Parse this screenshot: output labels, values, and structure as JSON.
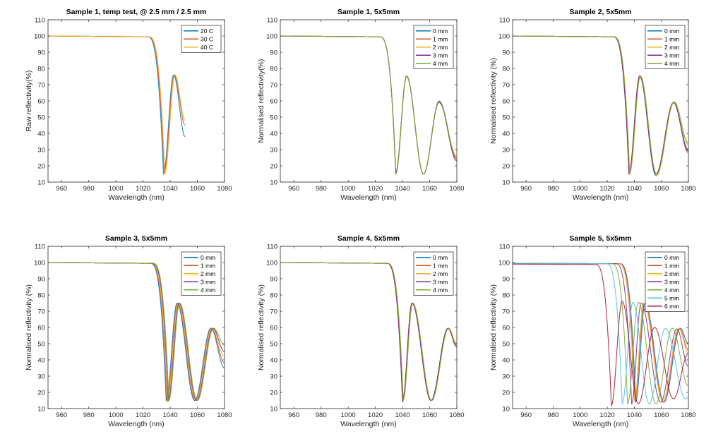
{
  "figure": {
    "xticks": [
      "960",
      "980",
      "1000",
      "1020",
      "1040",
      "1060",
      "1080"
    ],
    "yticks": [
      "10",
      "20",
      "30",
      "40",
      "50",
      "60",
      "70",
      "80",
      "90",
      "100",
      "110"
    ]
  },
  "chart_data": [
    {
      "type": "line",
      "title": "Sample 1, temp test, @ 2.5 mm / 2.5 mm",
      "xlabel": "Wavelength (nm)",
      "ylabel": "Raw reflectivity(%)",
      "xlim": [
        950,
        1080
      ],
      "ylim": [
        10,
        110
      ],
      "legend": "top-right",
      "series": [
        {
          "name": "20 C",
          "color": "#0072BD",
          "extrema": [
            [
              950,
              100
            ],
            [
              1023,
              99.5
            ],
            [
              1035,
              15
            ],
            [
              1042.5,
              76
            ],
            [
              1051,
              38
            ]
          ]
        },
        {
          "name": "30 C",
          "color": "#D95319",
          "extrema": [
            [
              950,
              100
            ],
            [
              1023.5,
              99.5
            ],
            [
              1035.5,
              16
            ],
            [
              1043,
              76
            ],
            [
              1051,
              45
            ]
          ]
        },
        {
          "name": "40 C",
          "color": "#EDB120",
          "extrema": [
            [
              950,
              100
            ],
            [
              1024,
              99.5
            ],
            [
              1036,
              15
            ],
            [
              1043.5,
              76
            ],
            [
              1051,
              48
            ]
          ]
        }
      ]
    },
    {
      "type": "line",
      "title": "Sample 1, 5x5mm",
      "xlabel": "Wavelength (nm)",
      "ylabel": "Normalised reflectivity(%)",
      "xlim": [
        950,
        1080
      ],
      "ylim": [
        10,
        110
      ],
      "legend": "top-right",
      "series": [
        {
          "name": "0 mm",
          "color": "#0072BD",
          "extrema": [
            [
              950,
              100
            ],
            [
              1023,
              99.5
            ],
            [
              1035,
              15
            ],
            [
              1043,
              75.5
            ],
            [
              1055.5,
              15
            ],
            [
              1067,
              60
            ],
            [
              1080,
              25
            ]
          ]
        },
        {
          "name": "1 mm",
          "color": "#D95319",
          "extrema": [
            [
              950,
              100
            ],
            [
              1023,
              99.5
            ],
            [
              1035,
              16
            ],
            [
              1043,
              75.5
            ],
            [
              1055.5,
              15
            ],
            [
              1067,
              59.5
            ],
            [
              1080,
              24
            ]
          ]
        },
        {
          "name": "2 mm",
          "color": "#EDB120",
          "extrema": [
            [
              950,
              100
            ],
            [
              1023,
              99.5
            ],
            [
              1035,
              15
            ],
            [
              1043,
              75.5
            ],
            [
              1055.5,
              15
            ],
            [
              1067,
              59.5
            ],
            [
              1080,
              26
            ]
          ]
        },
        {
          "name": "3 mm",
          "color": "#7E2F8E",
          "extrema": [
            [
              950,
              100
            ],
            [
              1023,
              99.5
            ],
            [
              1035,
              16
            ],
            [
              1043,
              75
            ],
            [
              1055.5,
              15
            ],
            [
              1067,
              59
            ],
            [
              1080,
              23
            ]
          ]
        },
        {
          "name": "4 mm",
          "color": "#77AC30",
          "extrema": [
            [
              950,
              100
            ],
            [
              1023,
              99.5
            ],
            [
              1035,
              15
            ],
            [
              1043,
              75
            ],
            [
              1055.5,
              15
            ],
            [
              1067,
              59.5
            ],
            [
              1080,
              25
            ]
          ]
        }
      ]
    },
    {
      "type": "line",
      "title": "Sample 2, 5x5mm",
      "xlabel": "Wavelength (nm)",
      "ylabel": "Normalised reflectivity (%)",
      "xlim": [
        950,
        1080
      ],
      "ylim": [
        10,
        110
      ],
      "legend": "top-right",
      "series": [
        {
          "name": "0 mm",
          "color": "#0072BD",
          "extrema": [
            [
              950,
              100
            ],
            [
              1024,
              99.5
            ],
            [
              1036,
              15
            ],
            [
              1044,
              75.5
            ],
            [
              1056,
              14
            ],
            [
              1069,
              59
            ],
            [
              1080,
              30
            ]
          ]
        },
        {
          "name": "1 mm",
          "color": "#D95319",
          "extrema": [
            [
              950,
              100
            ],
            [
              1024,
              99.5
            ],
            [
              1036,
              16
            ],
            [
              1044,
              75.5
            ],
            [
              1056,
              15
            ],
            [
              1069,
              59
            ],
            [
              1080,
              28
            ]
          ]
        },
        {
          "name": "2 mm",
          "color": "#EDB120",
          "extrema": [
            [
              950,
              100
            ],
            [
              1024.5,
              99.5
            ],
            [
              1036.5,
              15
            ],
            [
              1044.5,
              75.5
            ],
            [
              1056.5,
              14
            ],
            [
              1069.5,
              59
            ],
            [
              1080,
              33
            ]
          ]
        },
        {
          "name": "3 mm",
          "color": "#7E2F8E",
          "extrema": [
            [
              950,
              100
            ],
            [
              1024,
              99.5
            ],
            [
              1036,
              15
            ],
            [
              1044,
              75
            ],
            [
              1056,
              15
            ],
            [
              1069,
              59
            ],
            [
              1080,
              29
            ]
          ]
        },
        {
          "name": "4 mm",
          "color": "#77AC30",
          "extrema": [
            [
              950,
              100
            ],
            [
              1024.5,
              99.5
            ],
            [
              1036.5,
              16
            ],
            [
              1044.5,
              75
            ],
            [
              1056.5,
              15
            ],
            [
              1069.5,
              59.5
            ],
            [
              1080,
              34
            ]
          ]
        }
      ]
    },
    {
      "type": "line",
      "title": "Sample 3, 5x5mm",
      "xlabel": "Wavelength (nm)",
      "ylabel": "Normalised reflectivity (%)",
      "xlim": [
        950,
        1080
      ],
      "ylim": [
        10,
        110
      ],
      "legend": "top-right",
      "series": [
        {
          "name": "0 mm",
          "color": "#0072BD",
          "extrema": [
            [
              950,
              100
            ],
            [
              1025,
              99.5
            ],
            [
              1037,
              15
            ],
            [
              1045,
              75
            ],
            [
              1058,
              15
            ],
            [
              1070,
              59.5
            ],
            [
              1080,
              35
            ]
          ]
        },
        {
          "name": "1 mm",
          "color": "#D95319",
          "extrema": [
            [
              950,
              100
            ],
            [
              1025.5,
              99.5
            ],
            [
              1037.5,
              15
            ],
            [
              1045.5,
              75
            ],
            [
              1058.5,
              15
            ],
            [
              1070.5,
              59.5
            ],
            [
              1080,
              38
            ]
          ]
        },
        {
          "name": "2 mm",
          "color": "#EDB120",
          "extrema": [
            [
              950,
              100
            ],
            [
              1026,
              99.5
            ],
            [
              1038,
              14
            ],
            [
              1046,
              75
            ],
            [
              1059,
              15
            ],
            [
              1071,
              59.5
            ],
            [
              1080,
              42
            ]
          ]
        },
        {
          "name": "3 mm",
          "color": "#7E2F8E",
          "extrema": [
            [
              950,
              100
            ],
            [
              1026.5,
              99.5
            ],
            [
              1038.5,
              15
            ],
            [
              1046.5,
              75
            ],
            [
              1059.5,
              15
            ],
            [
              1071.5,
              59.5
            ],
            [
              1080,
              45
            ]
          ]
        },
        {
          "name": "4 mm",
          "color": "#77AC30",
          "extrema": [
            [
              950,
              100
            ],
            [
              1027,
              99.5
            ],
            [
              1039,
              15
            ],
            [
              1047,
              75
            ],
            [
              1060,
              15
            ],
            [
              1072,
              59.5
            ],
            [
              1080,
              49
            ]
          ]
        }
      ]
    },
    {
      "type": "line",
      "title": "Sample 4, 5x5mm",
      "xlabel": "Wavelength (nm)",
      "ylabel": "Normalised reflectivity (%)",
      "xlim": [
        950,
        1080
      ],
      "ylim": [
        10,
        110
      ],
      "legend": "top-right",
      "series": [
        {
          "name": "0 mm",
          "color": "#0072BD",
          "extrema": [
            [
              950,
              100
            ],
            [
              1028,
              99.5
            ],
            [
              1040,
              14
            ],
            [
              1047,
              75
            ],
            [
              1061,
              15
            ],
            [
              1073.5,
              59.5
            ],
            [
              1080,
              48
            ]
          ]
        },
        {
          "name": "1 mm",
          "color": "#D95319",
          "extrema": [
            [
              950,
              100
            ],
            [
              1028,
              99.5
            ],
            [
              1040,
              15
            ],
            [
              1047,
              75
            ],
            [
              1061,
              15
            ],
            [
              1073.5,
              59.5
            ],
            [
              1080,
              48
            ]
          ]
        },
        {
          "name": "2 mm",
          "color": "#EDB120",
          "extrema": [
            [
              950,
              100
            ],
            [
              1028.5,
              99.5
            ],
            [
              1040.5,
              15
            ],
            [
              1047.5,
              75
            ],
            [
              1061.5,
              15
            ],
            [
              1074,
              59.5
            ],
            [
              1080,
              50
            ]
          ]
        },
        {
          "name": "3 mm",
          "color": "#7E2F8E",
          "extrema": [
            [
              950,
              100
            ],
            [
              1028,
              99.5
            ],
            [
              1040,
              15
            ],
            [
              1047,
              75
            ],
            [
              1061,
              15
            ],
            [
              1073.5,
              59.5
            ],
            [
              1080,
              48
            ]
          ]
        },
        {
          "name": "4 mm",
          "color": "#77AC30",
          "extrema": [
            [
              950,
              100
            ],
            [
              1028.5,
              99.5
            ],
            [
              1040.5,
              16
            ],
            [
              1047.5,
              75
            ],
            [
              1061.5,
              15
            ],
            [
              1074,
              59.5
            ],
            [
              1080,
              49
            ]
          ]
        }
      ]
    },
    {
      "type": "line",
      "title": "Sample 5, 5x5mm",
      "xlabel": "Wavelength (nm)",
      "ylabel": "Normalised reflectivity (%)",
      "xlim": [
        950,
        1080
      ],
      "ylim": [
        10,
        110
      ],
      "legend": "top-right",
      "series": [
        {
          "name": "0 mm",
          "color": "#0072BD",
          "extrema": [
            [
              950,
              99.5
            ],
            [
              1029,
              99.3
            ],
            [
              1041,
              14
            ],
            [
              1048,
              75
            ],
            [
              1062,
              14
            ],
            [
              1074,
              59.5
            ],
            [
              1080,
              50
            ]
          ]
        },
        {
          "name": "1 mm",
          "color": "#D95319",
          "extrema": [
            [
              950,
              99.5
            ],
            [
              1028.5,
              99.3
            ],
            [
              1040.5,
              15
            ],
            [
              1047.5,
              75
            ],
            [
              1061.5,
              14
            ],
            [
              1073.5,
              59.5
            ],
            [
              1080,
              46
            ]
          ]
        },
        {
          "name": "2 mm",
          "color": "#EDB120",
          "extrema": [
            [
              950,
              99.5
            ],
            [
              1028,
              99.3
            ],
            [
              1040,
              15
            ],
            [
              1047,
              75
            ],
            [
              1061,
              15
            ],
            [
              1073,
              59.5
            ],
            [
              1080,
              44
            ]
          ]
        },
        {
          "name": "3 mm",
          "color": "#7E2F8E",
          "extrema": [
            [
              950,
              99.5
            ],
            [
              1026,
              99.3
            ],
            [
              1038,
              13
            ],
            [
              1045,
              75
            ],
            [
              1059.5,
              14
            ],
            [
              1071.5,
              59
            ],
            [
              1080,
              36
            ]
          ]
        },
        {
          "name": "4 mm",
          "color": "#77AC30",
          "extrema": [
            [
              950,
              99.5
            ],
            [
              1023,
              99.3
            ],
            [
              1035,
              13
            ],
            [
              1043,
              75.5
            ],
            [
              1056,
              13
            ],
            [
              1068,
              59.5
            ],
            [
              1080,
              24
            ]
          ]
        },
        {
          "name": "5 mm",
          "color": "#4DBEEE",
          "extrema": [
            [
              950,
              99.5
            ],
            [
              1019,
              99.3
            ],
            [
              1031,
              13
            ],
            [
              1039,
              75.5
            ],
            [
              1051,
              13
            ],
            [
              1063,
              59.5
            ],
            [
              1078,
              16
            ],
            [
              1080,
              17
            ]
          ]
        },
        {
          "name": "6 mm",
          "color": "#A2142F",
          "extrema": [
            [
              950,
              99
            ],
            [
              1011,
              98.8
            ],
            [
              1023,
              12
            ],
            [
              1031,
              76
            ],
            [
              1043,
              13
            ],
            [
              1055,
              60
            ],
            [
              1069,
              16
            ],
            [
              1080,
              44
            ]
          ]
        }
      ]
    }
  ]
}
